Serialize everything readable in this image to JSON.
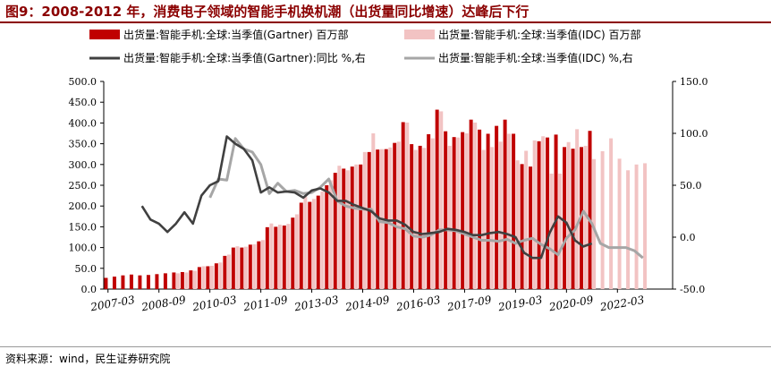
{
  "title": "图9：2008-2012 年，消费电子领域的智能手机换机潮（出货量同比增速）达峰后下行",
  "source": "资料来源：wind，民生证券研究院",
  "colors": {
    "gartner_bar": "#c00000",
    "idc_bar": "#f2c3c3",
    "gartner_line": "#404040",
    "idc_line": "#a6a6a6",
    "title": "#8b0000"
  },
  "chart_data": {
    "type": "bar+line",
    "x_tick_labels": [
      "2007-03",
      "2008-09",
      "2010-03",
      "2011-09",
      "2013-03",
      "2014-09",
      "2016-03",
      "2017-09",
      "2019-03",
      "2020-09",
      "2022-03"
    ],
    "y_left": {
      "min": 0,
      "max": 500,
      "step": 50,
      "ticks": [
        "0.0",
        "50.0",
        "100.0",
        "150.0",
        "200.0",
        "250.0",
        "300.0",
        "350.0",
        "400.0",
        "450.0",
        "500.0"
      ]
    },
    "y_right": {
      "min": -50,
      "max": 150,
      "step": 50,
      "ticks": [
        "-50.0",
        "0.0",
        "50.0",
        "100.0",
        "150.0"
      ]
    },
    "legend_position": "top",
    "quarters": [
      "2007Q1",
      "2007Q2",
      "2007Q3",
      "2007Q4",
      "2008Q1",
      "2008Q2",
      "2008Q3",
      "2008Q4",
      "2009Q1",
      "2009Q2",
      "2009Q3",
      "2009Q4",
      "2010Q1",
      "2010Q2",
      "2010Q3",
      "2010Q4",
      "2011Q1",
      "2011Q2",
      "2011Q3",
      "2011Q4",
      "2012Q1",
      "2012Q2",
      "2012Q3",
      "2012Q4",
      "2013Q1",
      "2013Q2",
      "2013Q3",
      "2013Q4",
      "2014Q1",
      "2014Q2",
      "2014Q3",
      "2014Q4",
      "2015Q1",
      "2015Q2",
      "2015Q3",
      "2015Q4",
      "2016Q1",
      "2016Q2",
      "2016Q3",
      "2016Q4",
      "2017Q1",
      "2017Q2",
      "2017Q3",
      "2017Q4",
      "2018Q1",
      "2018Q2",
      "2018Q3",
      "2018Q4",
      "2019Q1",
      "2019Q2",
      "2019Q3",
      "2019Q4",
      "2020Q1",
      "2020Q2",
      "2020Q3",
      "2020Q4",
      "2021Q1",
      "2021Q2",
      "2021Q3",
      "2021Q4",
      "2022Q1",
      "2022Q2",
      "2022Q3",
      "2022Q4",
      "2023Q1",
      "2023Q2",
      "2023Q3"
    ],
    "series": [
      {
        "name": "出货量:智能手机:全球:当季值(Gartner) 百万部",
        "kind": "bar",
        "axis": "left",
        "values": [
          27,
          30,
          33,
          35,
          33,
          34,
          36,
          38,
          40,
          41,
          45,
          53,
          55,
          62,
          80,
          100,
          100,
          107,
          115,
          149,
          150,
          153,
          172,
          208,
          210,
          225,
          250,
          280,
          290,
          295,
          300,
          330,
          336,
          337,
          352,
          402,
          349,
          345,
          373,
          432,
          380,
          366,
          378,
          408,
          384,
          374,
          393,
          408,
          374,
          301,
          295,
          356,
          365,
          372,
          342,
          338,
          342,
          381,
          null,
          null,
          null,
          null,
          null,
          null,
          null,
          null,
          null
        ]
      },
      {
        "name": "出货量:智能手机:全球:当季值(IDC) 百万部",
        "kind": "bar",
        "axis": "left",
        "values": [
          null,
          null,
          null,
          null,
          null,
          null,
          null,
          null,
          38,
          40,
          44,
          55,
          56,
          64,
          83,
          103,
          102,
          108,
          118,
          158,
          155,
          157,
          180,
          223,
          217,
          235,
          262,
          297,
          286,
          300,
          330,
          375,
          337,
          341,
          355,
          401,
          335,
          340,
          363,
          428,
          345,
          365,
          375,
          401,
          335,
          342,
          355,
          374,
          310,
          333,
          358,
          368,
          278,
          278,
          354,
          385,
          345,
          313,
          332,
          363,
          314,
          286,
          300,
          303,
          null,
          null,
          null
        ]
      },
      {
        "name": "出货量:智能手机:全球:当季值(Gartner):同比 %,右",
        "kind": "line",
        "axis": "right",
        "values": [
          null,
          null,
          null,
          null,
          30,
          17,
          13,
          5,
          13,
          24,
          13,
          40,
          50,
          54,
          97,
          90,
          85,
          74,
          43,
          48,
          43,
          44,
          43,
          38,
          45,
          47,
          43,
          35,
          35,
          31,
          28,
          25,
          18,
          16,
          16,
          12,
          5,
          3,
          4,
          5,
          8,
          7,
          5,
          2,
          2,
          4,
          5,
          3,
          0,
          -15,
          -20,
          -20,
          4,
          20,
          14,
          -3,
          -9,
          -6,
          null,
          null,
          null,
          null,
          null,
          null,
          null,
          null,
          null
        ]
      },
      {
        "name": "出货量:智能手机:全球:当季值(IDC) %,右",
        "kind": "line",
        "axis": "right",
        "values": [
          null,
          null,
          null,
          null,
          null,
          null,
          null,
          null,
          null,
          null,
          null,
          null,
          38,
          56,
          55,
          95,
          85,
          82,
          70,
          42,
          52,
          44,
          45,
          42,
          43,
          48,
          56,
          35,
          30,
          28,
          27,
          27,
          15,
          14,
          10,
          8,
          1,
          0,
          2,
          7,
          7,
          6,
          3,
          0,
          -3,
          -3,
          -4,
          -2,
          -6,
          -3,
          -1,
          -7,
          -11,
          -17,
          -1,
          7,
          25,
          13,
          -6,
          -10,
          -10,
          -10,
          -13,
          -20,
          null,
          null,
          null
        ]
      }
    ]
  }
}
